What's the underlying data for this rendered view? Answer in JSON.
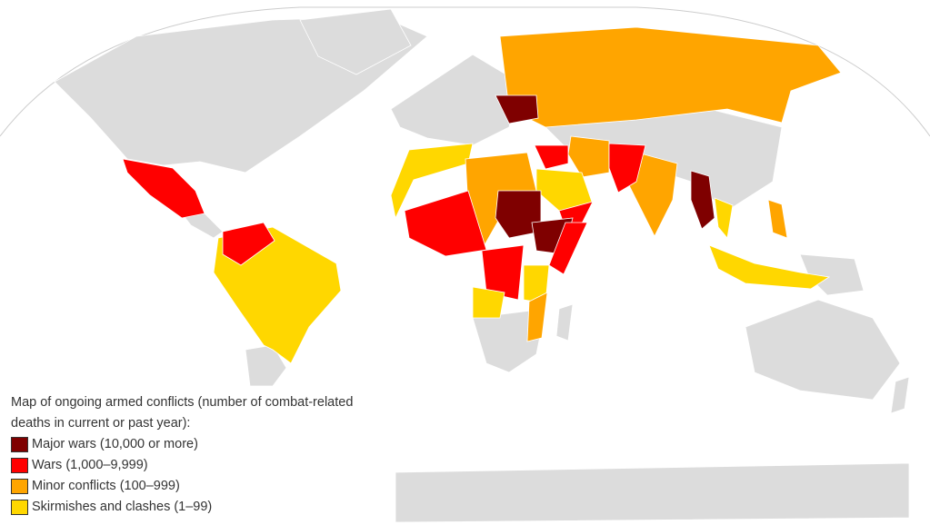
{
  "legend": {
    "title": "Map of ongoing armed conflicts (number of combat-related deaths in current or past year):",
    "items": [
      {
        "label": "Major wars (10,000 or more)",
        "color": "#7f0000"
      },
      {
        "label": "Wars (1,000–9,999)",
        "color": "#ff0000"
      },
      {
        "label": "Minor conflicts (100–999)",
        "color": "#ffa500"
      },
      {
        "label": "Skirmishes and clashes (1–99)",
        "color": "#ffd700"
      }
    ]
  }
}
